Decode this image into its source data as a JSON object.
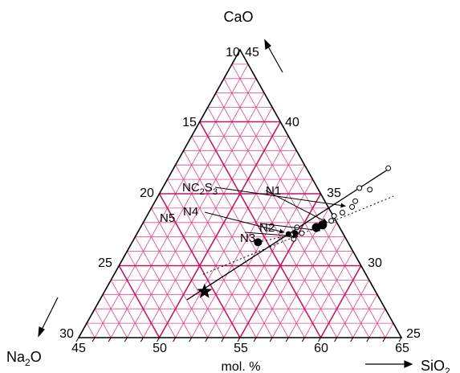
{
  "diagram": {
    "type": "ternary",
    "components": {
      "top": "CaO",
      "left": "Na",
      "left_sub": "2",
      "left_tail": "O",
      "right": "SiO",
      "right_sub": "2"
    },
    "unit_label": "mol. %",
    "ranges": {
      "sio2": [
        45,
        65
      ],
      "cao": [
        10,
        45
      ],
      "na2o": [
        25,
        30
      ]
    },
    "bottom_ticks": [
      "45",
      "50",
      "55",
      "60",
      "65"
    ],
    "left_ticks": [
      "10",
      "15",
      "20",
      "25",
      "30"
    ],
    "right_ticks": [
      "45",
      "40",
      "35",
      "30",
      "25"
    ],
    "compound_label": {
      "base": "NC",
      "sub1": "2",
      "mid": "S",
      "sub2": "3"
    },
    "points": [
      {
        "label": "N1",
        "sio2": 56.2,
        "cao": 23.7
      },
      {
        "label": "N2",
        "sio2": 55.9,
        "cao": 23.4
      },
      {
        "label": "N3",
        "sio2": 54.8,
        "cao": 22.7
      },
      {
        "label": "N4",
        "sio2": 54.4,
        "cao": 22.6
      },
      {
        "label": "N5",
        "sio2": 52.8,
        "cao": 21.6
      }
    ],
    "open_points": [
      {
        "sio2": 58.3,
        "cao": 30.6
      },
      {
        "sio2": 57.2,
        "cao": 28.2
      },
      {
        "sio2": 57.9,
        "cao": 28.0
      },
      {
        "sio2": 57.4,
        "cao": 26.6
      },
      {
        "sio2": 57.4,
        "cao": 25.9
      },
      {
        "sio2": 57.0,
        "cao": 25.2
      },
      {
        "sio2": 56.6,
        "cao": 24.8
      },
      {
        "sio2": 56.6,
        "cao": 24.2
      },
      {
        "sio2": 54.6,
        "cao": 22.5
      },
      {
        "sio2": 54.7,
        "cao": 23.4
      },
      {
        "sio2": 55.2,
        "cao": 22.7
      },
      {
        "sio2": 54.9,
        "cao": 22.0
      },
      {
        "sio2": 55.8,
        "cao": 23.4
      }
    ],
    "star": {
      "sio2": 51.2,
      "cao": 15.6
    },
    "colors": {
      "grid_minor": "#e0438f",
      "grid_major": "#c21866",
      "frame": "#000000"
    }
  }
}
